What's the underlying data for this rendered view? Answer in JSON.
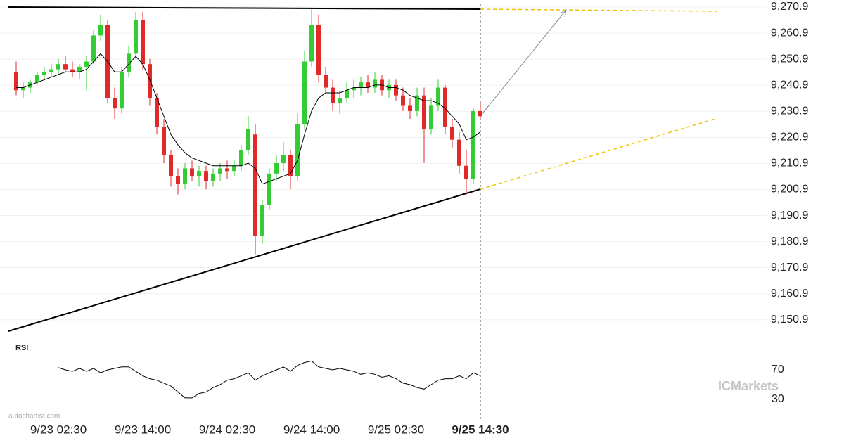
{
  "chart_data": [
    {
      "type": "candlestick",
      "categories": [
        null,
        null,
        null,
        null,
        null,
        null,
        "9/23 02:30",
        null,
        null,
        null,
        null,
        null,
        null,
        null,
        null,
        null,
        null,
        null,
        "9/23 14:00",
        null,
        null,
        null,
        null,
        null,
        null,
        null,
        null,
        null,
        null,
        null,
        "9/24 02:30",
        null,
        null,
        null,
        null,
        null,
        null,
        null,
        null,
        null,
        null,
        null,
        "9/24 14:00",
        null,
        null,
        null,
        null,
        null,
        null,
        null,
        null,
        null,
        null,
        null,
        "9/25 02:30",
        null,
        null,
        null,
        null,
        null,
        null,
        null,
        null,
        null,
        null,
        null,
        "9/25 14:30"
      ],
      "open": [
        9246,
        9239,
        9240,
        9242,
        9245,
        9246,
        9247,
        9249,
        9247,
        9246,
        9248,
        9250,
        9260,
        9264,
        9236,
        9232,
        9246,
        9253,
        9266,
        9249,
        9236,
        9225,
        9214,
        9206,
        9203,
        9209,
        9206,
        9208,
        9204,
        9207,
        9209,
        9208,
        9210,
        9216,
        9222,
        9183,
        9195,
        9207,
        9211,
        9214,
        9206,
        9226,
        9250,
        9264,
        9245,
        9240,
        9234,
        9236,
        9239,
        9240,
        9242,
        9240,
        9243,
        9239,
        9241,
        9237,
        9233,
        9231,
        9237,
        9224,
        9233,
        9240,
        9225,
        9220,
        9210,
        9205,
        9231
      ],
      "high": [
        9250,
        9242,
        9243,
        9246,
        9248,
        9249,
        9251,
        9252,
        9250,
        9249,
        9252,
        9262,
        9268,
        9266,
        9240,
        9248,
        9256,
        9269,
        9269,
        9251,
        9238,
        9228,
        9216,
        9209,
        9211,
        9212,
        9210,
        9210,
        9209,
        9211,
        9212,
        9212,
        9218,
        9229,
        9226,
        9197,
        9209,
        9214,
        9219,
        9216,
        9230,
        9254,
        9270,
        9268,
        9248,
        9243,
        9239,
        9242,
        9243,
        9244,
        9245,
        9246,
        9245,
        9243,
        9243,
        9240,
        9236,
        9240,
        9240,
        9236,
        9243,
        9241,
        9228,
        9223,
        9216,
        9232,
        9234
      ],
      "low": [
        9237,
        9236,
        9238,
        9241,
        9243,
        9244,
        9245,
        9246,
        9244,
        9243,
        9239,
        9249,
        9258,
        9234,
        9228,
        9230,
        9244,
        9251,
        9247,
        9233,
        9222,
        9211,
        9202,
        9199,
        9201,
        9204,
        9202,
        9201,
        9202,
        9204,
        9205,
        9206,
        9208,
        9214,
        9176,
        9180,
        9193,
        9204,
        9208,
        9201,
        9204,
        9224,
        9248,
        9242,
        9238,
        9231,
        9230,
        9234,
        9236,
        9237,
        9238,
        9238,
        9237,
        9236,
        9235,
        9231,
        9228,
        9229,
        9211,
        9222,
        9231,
        9222,
        9217,
        9207,
        9199,
        9203,
        9228
      ],
      "close": [
        9239,
        9240,
        9242,
        9245,
        9246,
        9247,
        9249,
        9247,
        9246,
        9248,
        9250,
        9260,
        9264,
        9236,
        9232,
        9246,
        9253,
        9266,
        9249,
        9236,
        9225,
        9214,
        9206,
        9203,
        9209,
        9206,
        9208,
        9204,
        9207,
        9209,
        9208,
        9210,
        9216,
        9224,
        9183,
        9195,
        9207,
        9211,
        9214,
        9206,
        9226,
        9250,
        9264,
        9245,
        9240,
        9234,
        9236,
        9239,
        9240,
        9242,
        9240,
        9243,
        9239,
        9241,
        9237,
        9233,
        9231,
        9237,
        9224,
        9233,
        9240,
        9225,
        9220,
        9210,
        9205,
        9231,
        9229
      ],
      "up_color": "#33cc33",
      "down_color": "#e02a2a",
      "overlay_line": {
        "color": "#000000",
        "values": [
          9240,
          9240,
          9241,
          9242,
          9243,
          9244,
          9245,
          9246,
          9246,
          9246,
          9247,
          9250,
          9253,
          9250,
          9246,
          9246,
          9249,
          9252,
          9249,
          9243,
          9236,
          9229,
          9222,
          9218,
          9215,
          9213,
          9212,
          9211,
          9210,
          9210,
          9210,
          9210,
          9210,
          9211,
          9209,
          9203,
          9204,
          9205,
          9206,
          9207,
          9212,
          9222,
          9231,
          9236,
          9238,
          9238,
          9238,
          9239,
          9240,
          9240,
          9240,
          9241,
          9241,
          9240,
          9240,
          9239,
          9237,
          9236,
          9235,
          9235,
          9234,
          9232,
          9229,
          9226,
          9220,
          9221,
          9223
        ]
      },
      "ylim": [
        9144.1,
        9273.6
      ],
      "yticks": [
        {
          "value": 9270.9,
          "label": "9,270.9"
        },
        {
          "value": 9260.9,
          "label": "9,260.9"
        },
        {
          "value": 9250.9,
          "label": "9,250.9"
        },
        {
          "value": 9240.9,
          "label": "9,240.9"
        },
        {
          "value": 9230.9,
          "label": "9,230.9"
        },
        {
          "value": 9220.9,
          "label": "9,220.9"
        },
        {
          "value": 9210.9,
          "label": "9,210.9"
        },
        {
          "value": 9200.9,
          "label": "9,200.9"
        },
        {
          "value": 9190.9,
          "label": "9,190.9"
        },
        {
          "value": 9180.9,
          "label": "9,180.9"
        },
        {
          "value": 9170.9,
          "label": "9,170.9"
        },
        {
          "value": 9160.9,
          "label": "9,160.9"
        },
        {
          "value": 9150.9,
          "label": "9,150.9"
        }
      ],
      "grid": true
    },
    {
      "type": "line",
      "title": "RSI",
      "color": "#000000",
      "values": [
        null,
        null,
        null,
        null,
        null,
        null,
        73,
        70,
        68,
        72,
        68,
        72,
        66,
        70,
        72,
        74,
        74,
        68,
        62,
        58,
        56,
        52,
        48,
        40,
        32,
        32,
        38,
        40,
        46,
        50,
        56,
        58,
        62,
        66,
        56,
        62,
        66,
        70,
        74,
        68,
        76,
        80,
        82,
        74,
        72,
        70,
        72,
        70,
        68,
        64,
        66,
        64,
        60,
        62,
        58,
        52,
        50,
        46,
        44,
        50,
        56,
        58,
        58,
        62,
        58,
        66,
        62
      ],
      "ylim": [
        10,
        100
      ],
      "yticks": [
        70,
        30
      ]
    }
  ],
  "watermarks": {
    "source": "autochartist.com",
    "logo": "ICMarkets"
  }
}
